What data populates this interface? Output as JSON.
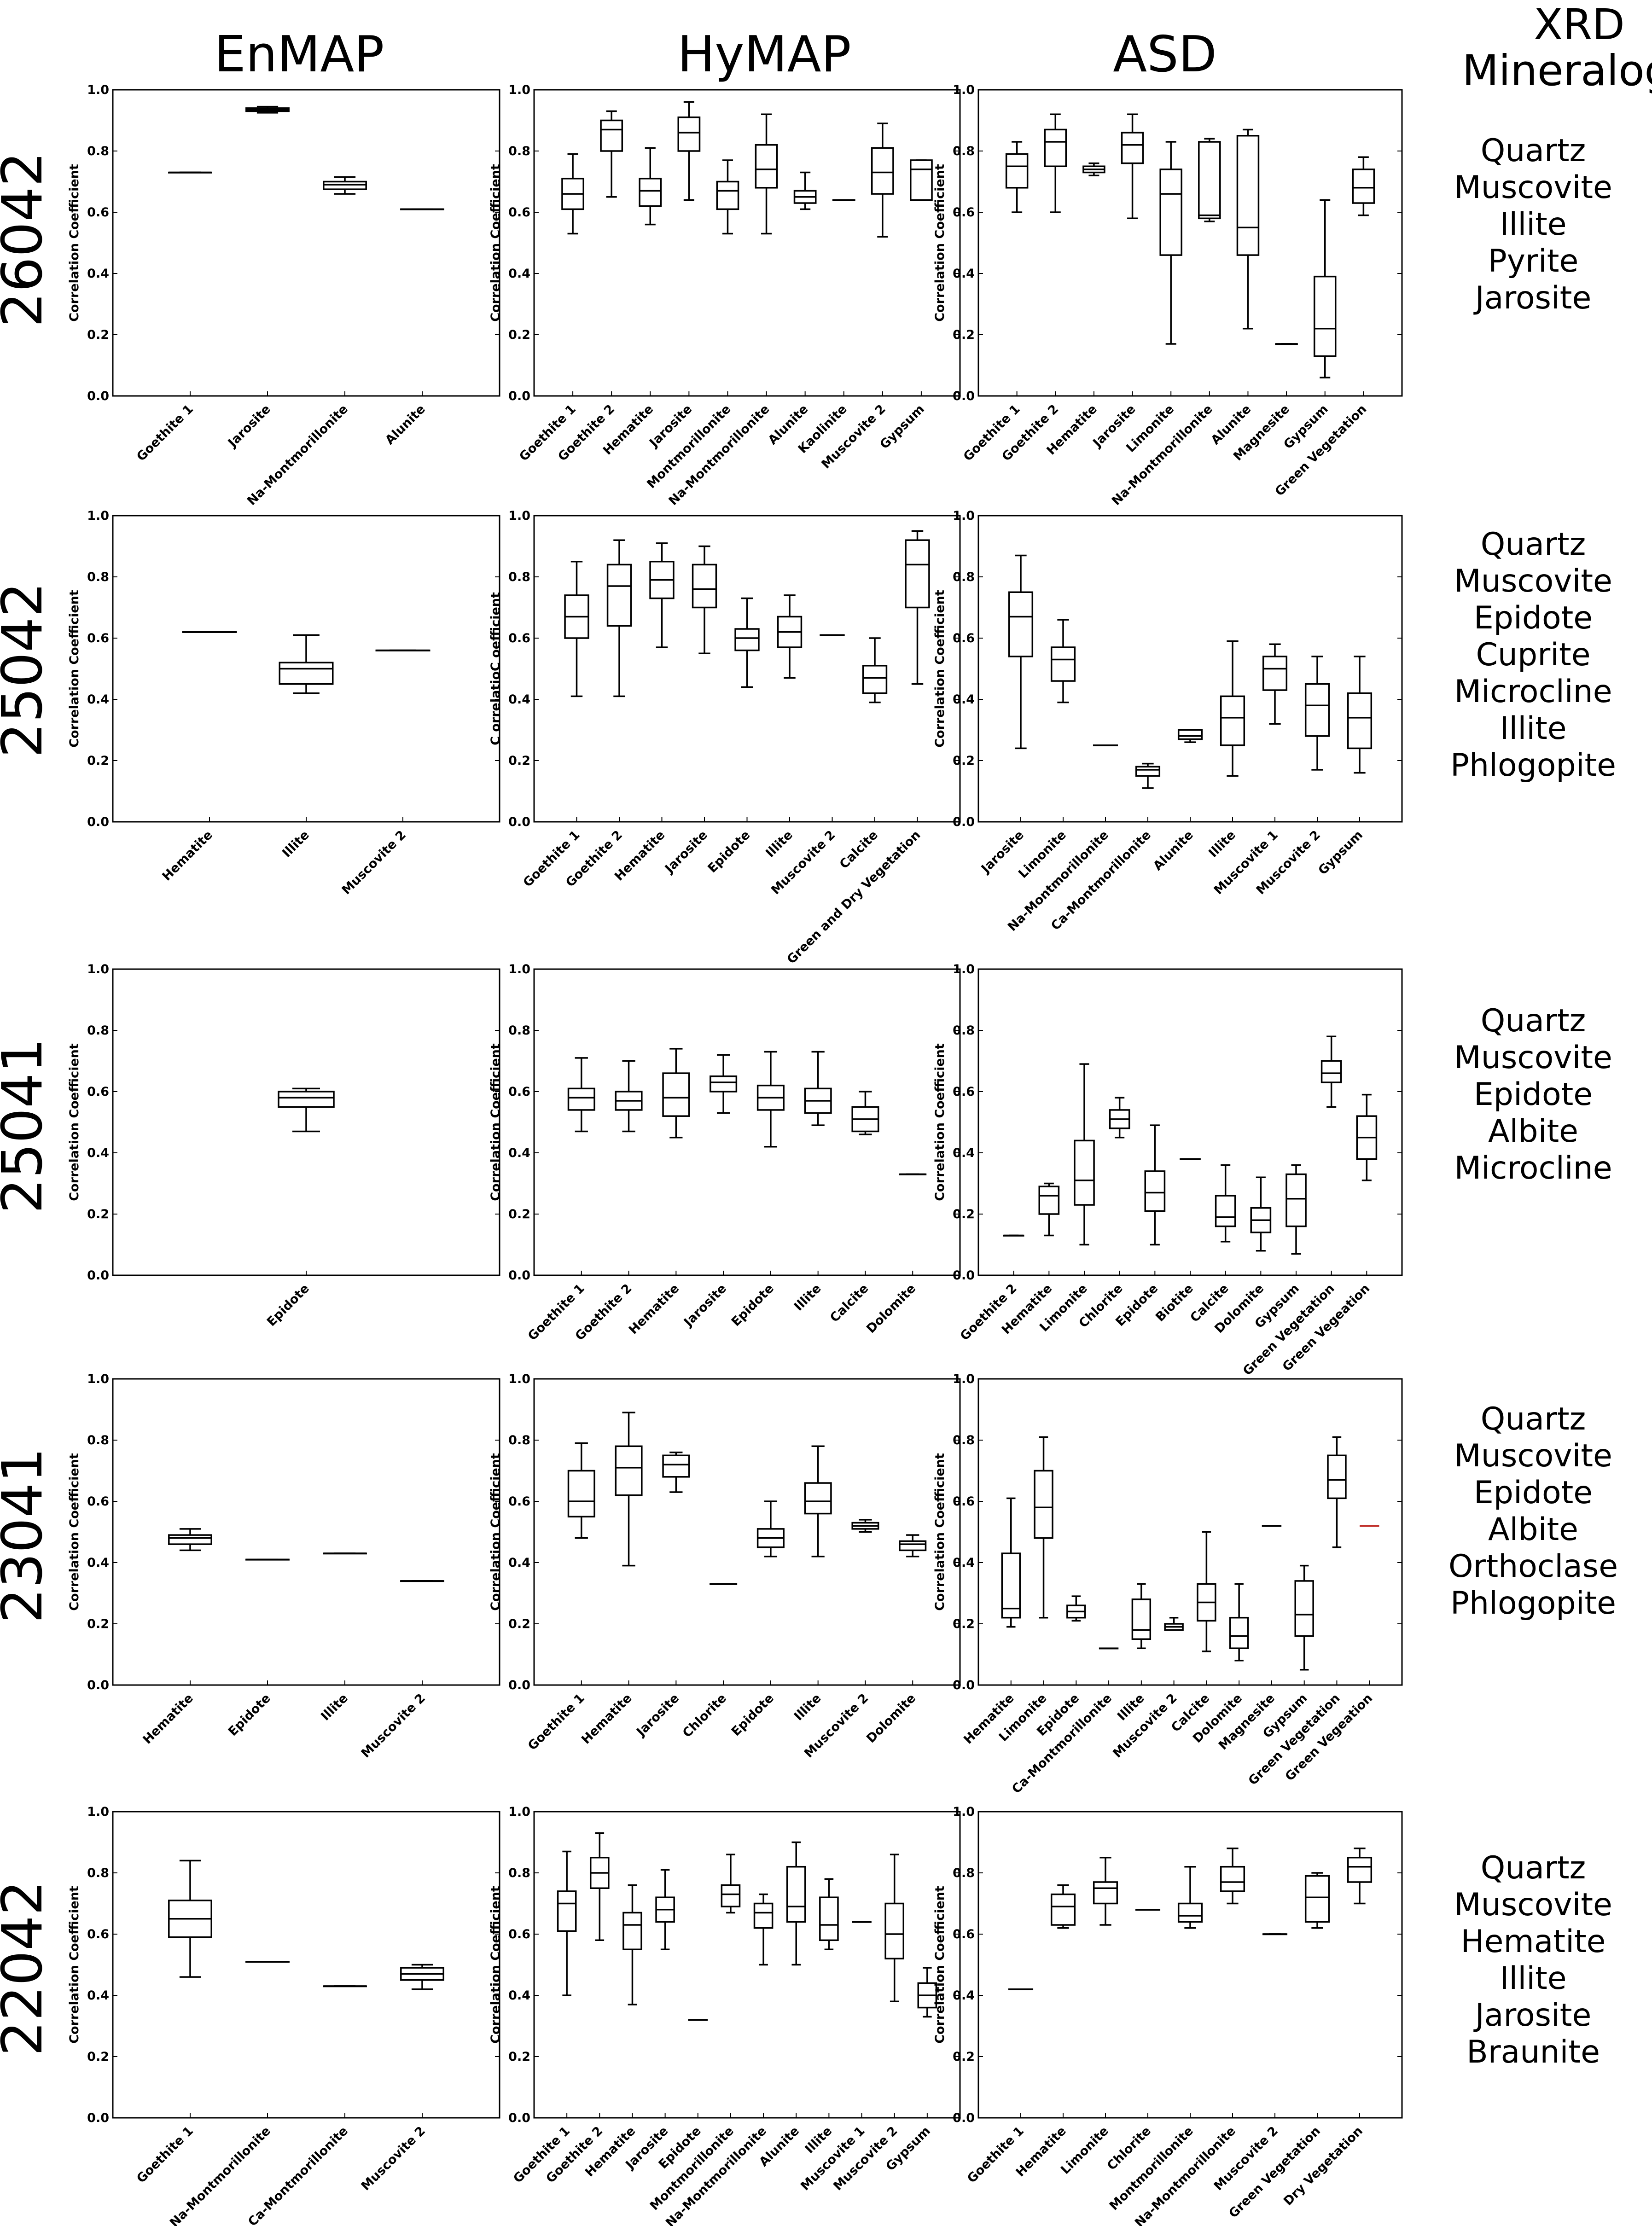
{
  "columns": [
    "EnMAP",
    "HyMAP",
    "ASD"
  ],
  "xrd_header": [
    "XRD",
    "Mineralogy"
  ],
  "ylabel": "Correlation Coefficient",
  "ylabel_variant": "C orrelatioC oefficient",
  "yticks": [
    "0.0",
    "0.2",
    "0.4",
    "0.6",
    "0.8",
    "1.0"
  ],
  "chart_data": [
    {
      "row": 0,
      "sample": "26042",
      "sensor": "EnMAP",
      "type": "box",
      "ylim": [
        0,
        1
      ],
      "ylabel": "Correlation Coefficient",
      "categories": [
        "Goethite 1",
        "Jarosite",
        "Na-Montmorillonite",
        "Alunite"
      ],
      "boxes": [
        [
          0.73,
          0.73,
          0.73,
          0.73,
          0.73
        ],
        [
          0.925,
          0.93,
          0.935,
          0.94,
          0.945
        ],
        [
          0.66,
          0.675,
          0.69,
          0.7,
          0.715
        ],
        [
          0.61,
          0.61,
          0.61,
          0.61,
          0.61
        ]
      ]
    },
    {
      "row": 0,
      "sample": "26042",
      "sensor": "HyMAP",
      "type": "box",
      "ylim": [
        0,
        1
      ],
      "ylabel": "Correlation Coefficient",
      "categories": [
        "Goethite 1",
        "Goethite 2",
        "Hematite",
        "Jarosite",
        "Montmorillonite",
        "Na-Montmorillonite",
        "Alunite",
        "Kaolinite",
        "Muscovite 2",
        "Gypsum"
      ],
      "boxes": [
        [
          0.53,
          0.61,
          0.66,
          0.71,
          0.79
        ],
        [
          0.65,
          0.8,
          0.87,
          0.9,
          0.93
        ],
        [
          0.56,
          0.62,
          0.67,
          0.71,
          0.81
        ],
        [
          0.64,
          0.8,
          0.86,
          0.91,
          0.96
        ],
        [
          0.53,
          0.61,
          0.67,
          0.7,
          0.77
        ],
        [
          0.53,
          0.68,
          0.74,
          0.82,
          0.92
        ],
        [
          0.61,
          0.63,
          0.65,
          0.67,
          0.73
        ],
        [
          0.64,
          0.64,
          0.64,
          0.64,
          0.64
        ],
        [
          0.52,
          0.66,
          0.73,
          0.81,
          0.89
        ],
        [
          0.64,
          0.64,
          0.74,
          0.77,
          0.77
        ]
      ]
    },
    {
      "row": 0,
      "sample": "26042",
      "sensor": "ASD",
      "type": "box",
      "ylim": [
        0,
        1
      ],
      "ylabel": "Correlation Coefficient",
      "categories": [
        "Goethite 1",
        "Goethite 2",
        "Hematite",
        "Jarosite",
        "Limonite",
        "Na-Montmorillonite",
        "Alunite",
        "Magnesite",
        "Gypsum",
        "Green Vegetation"
      ],
      "boxes": [
        [
          0.6,
          0.68,
          0.75,
          0.79,
          0.83
        ],
        [
          0.6,
          0.75,
          0.83,
          0.87,
          0.92
        ],
        [
          0.72,
          0.73,
          0.74,
          0.75,
          0.76
        ],
        [
          0.58,
          0.76,
          0.82,
          0.86,
          0.92
        ],
        [
          0.17,
          0.46,
          0.66,
          0.74,
          0.83
        ],
        [
          0.57,
          0.58,
          0.59,
          0.83,
          0.84
        ],
        [
          0.22,
          0.46,
          0.55,
          0.85,
          0.87
        ],
        [
          0.17,
          0.17,
          0.17,
          0.17,
          0.17
        ],
        [
          0.06,
          0.13,
          0.22,
          0.39,
          0.64
        ],
        [
          0.59,
          0.63,
          0.68,
          0.74,
          0.78
        ]
      ]
    },
    {
      "row": 1,
      "sample": "25042",
      "sensor": "EnMAP",
      "type": "box",
      "ylim": [
        0,
        1
      ],
      "ylabel": "Correlation Coefficient",
      "categories": [
        "Hematite",
        "Illite",
        "Muscovite 2"
      ],
      "boxes": [
        [
          0.62,
          0.62,
          0.62,
          0.62,
          0.62
        ],
        [
          0.42,
          0.45,
          0.5,
          0.52,
          0.61
        ],
        [
          0.56,
          0.56,
          0.56,
          0.56,
          0.56
        ]
      ]
    },
    {
      "row": 1,
      "sample": "25042",
      "sensor": "HyMAP",
      "type": "box",
      "ylim": [
        0,
        1
      ],
      "ylabel": "C orrelatioC oefficient",
      "categories": [
        "Goethite 1",
        "Goethite 2",
        "Hematite",
        "Jarosite",
        "Epidote",
        "Illite",
        "Muscovite 2",
        "Calcite",
        "Green and Dry Vegetation"
      ],
      "boxes": [
        [
          0.41,
          0.6,
          0.67,
          0.74,
          0.85
        ],
        [
          0.41,
          0.64,
          0.77,
          0.84,
          0.92
        ],
        [
          0.57,
          0.73,
          0.79,
          0.85,
          0.91
        ],
        [
          0.55,
          0.7,
          0.76,
          0.84,
          0.9
        ],
        [
          0.44,
          0.56,
          0.6,
          0.63,
          0.73
        ],
        [
          0.47,
          0.57,
          0.62,
          0.67,
          0.74
        ],
        [
          0.61,
          0.61,
          0.61,
          0.61,
          0.61
        ],
        [
          0.39,
          0.42,
          0.47,
          0.51,
          0.6
        ],
        [
          0.45,
          0.7,
          0.84,
          0.92,
          0.95
        ]
      ]
    },
    {
      "row": 1,
      "sample": "25042",
      "sensor": "ASD",
      "type": "box",
      "ylim": [
        0,
        1
      ],
      "ylabel": "Correlation Coefficient",
      "categories": [
        "Jarosite",
        "Limonite",
        "Na-Montmorillonite",
        "Ca-Montmorillonite",
        "Alunite",
        "Illite",
        "Muscovite 1",
        "Muscovite 2",
        "Gypsum"
      ],
      "boxes": [
        [
          0.24,
          0.54,
          0.67,
          0.75,
          0.87
        ],
        [
          0.39,
          0.46,
          0.53,
          0.57,
          0.66
        ],
        [
          0.25,
          0.25,
          0.25,
          0.25,
          0.25
        ],
        [
          0.11,
          0.15,
          0.17,
          0.18,
          0.19
        ],
        [
          0.26,
          0.27,
          0.28,
          0.3,
          0.3
        ],
        [
          0.15,
          0.25,
          0.34,
          0.41,
          0.59
        ],
        [
          0.32,
          0.43,
          0.5,
          0.54,
          0.58
        ],
        [
          0.17,
          0.28,
          0.38,
          0.45,
          0.54
        ],
        [
          0.16,
          0.24,
          0.34,
          0.42,
          0.54
        ]
      ]
    },
    {
      "row": 2,
      "sample": "25041",
      "sensor": "EnMAP",
      "type": "box",
      "ylim": [
        0,
        1
      ],
      "ylabel": "Correlation Coefficient",
      "categories": [
        "Epidote"
      ],
      "boxes": [
        [
          0.47,
          0.55,
          0.58,
          0.6,
          0.61
        ]
      ]
    },
    {
      "row": 2,
      "sample": "25041",
      "sensor": "HyMAP",
      "type": "box",
      "ylim": [
        0,
        1
      ],
      "ylabel": "Correlation Coefficient",
      "categories": [
        "Goethite 1",
        "Goethite 2",
        "Hematite",
        "Jarosite",
        "Epidote",
        "Illite",
        "Calcite",
        "Dolomite"
      ],
      "boxes": [
        [
          0.47,
          0.54,
          0.58,
          0.61,
          0.71
        ],
        [
          0.47,
          0.54,
          0.57,
          0.6,
          0.7
        ],
        [
          0.45,
          0.52,
          0.58,
          0.66,
          0.74
        ],
        [
          0.53,
          0.6,
          0.63,
          0.65,
          0.72
        ],
        [
          0.42,
          0.54,
          0.58,
          0.62,
          0.73
        ],
        [
          0.49,
          0.53,
          0.57,
          0.61,
          0.73
        ],
        [
          0.46,
          0.47,
          0.51,
          0.55,
          0.6
        ],
        [
          0.33,
          0.33,
          0.33,
          0.33,
          0.33
        ]
      ]
    },
    {
      "row": 2,
      "sample": "25041",
      "sensor": "ASD",
      "type": "box",
      "ylim": [
        0,
        1
      ],
      "ylabel": "Correlation Coefficient",
      "categories": [
        "Goethite 2",
        "Hematite",
        "Limonite",
        "Chlorite",
        "Epidote",
        "Biotite",
        "Calcite",
        "Dolomite",
        "Gypsum",
        "Green Vegetation",
        "Green Vegeation"
      ],
      "boxes": [
        [
          0.13,
          0.13,
          0.13,
          0.13,
          0.13
        ],
        [
          0.13,
          0.2,
          0.26,
          0.29,
          0.3
        ],
        [
          0.1,
          0.23,
          0.31,
          0.44,
          0.69
        ],
        [
          0.45,
          0.48,
          0.51,
          0.54,
          0.58
        ],
        [
          0.1,
          0.21,
          0.27,
          0.34,
          0.49
        ],
        [
          0.38,
          0.38,
          0.38,
          0.38,
          0.38
        ],
        [
          0.11,
          0.16,
          0.19,
          0.26,
          0.36
        ],
        [
          0.08,
          0.14,
          0.18,
          0.22,
          0.32
        ],
        [
          0.07,
          0.16,
          0.25,
          0.33,
          0.36
        ],
        [
          0.55,
          0.63,
          0.66,
          0.7,
          0.78
        ],
        [
          0.31,
          0.38,
          0.45,
          0.52,
          0.59
        ]
      ]
    },
    {
      "row": 3,
      "sample": "23041",
      "sensor": "EnMAP",
      "type": "box",
      "ylim": [
        0,
        1
      ],
      "ylabel": "Correlation Coefficient",
      "categories": [
        "Hematite",
        "Epidote",
        "Illite",
        "Muscovite 2"
      ],
      "boxes": [
        [
          0.44,
          0.46,
          0.48,
          0.49,
          0.51
        ],
        [
          0.41,
          0.41,
          0.41,
          0.41,
          0.41
        ],
        [
          0.43,
          0.43,
          0.43,
          0.43,
          0.43
        ],
        [
          0.34,
          0.34,
          0.34,
          0.34,
          0.34
        ]
      ]
    },
    {
      "row": 3,
      "sample": "23041",
      "sensor": "HyMAP",
      "type": "box",
      "ylim": [
        0,
        1
      ],
      "ylabel": "Correlation Coefficient",
      "categories": [
        "Goethite 1",
        "Hematite",
        "Jarosite",
        "Chlorite",
        "Epidote",
        "Illite",
        "Muscovite 2",
        "Dolomite"
      ],
      "boxes": [
        [
          0.48,
          0.55,
          0.6,
          0.7,
          0.79
        ],
        [
          0.39,
          0.62,
          0.71,
          0.78,
          0.89
        ],
        [
          0.63,
          0.68,
          0.72,
          0.75,
          0.76
        ],
        [
          0.33,
          0.33,
          0.33,
          0.33,
          0.33
        ],
        [
          0.42,
          0.45,
          0.48,
          0.51,
          0.6
        ],
        [
          0.42,
          0.56,
          0.6,
          0.66,
          0.78
        ],
        [
          0.5,
          0.51,
          0.52,
          0.53,
          0.54
        ],
        [
          0.42,
          0.44,
          0.46,
          0.47,
          0.49
        ]
      ]
    },
    {
      "row": 3,
      "sample": "23041",
      "sensor": "ASD",
      "type": "box",
      "ylim": [
        0,
        1
      ],
      "ylabel": "Correlation Coefficient",
      "categories": [
        "Hematite",
        "Limonite",
        "Epidote",
        "Ca-Montmorillonite",
        "Illite",
        "Muscovite 2",
        "Calcite",
        "Dolomite",
        "Magnesite",
        "Gypsum",
        "Green Vegetation",
        "Green Vegeation"
      ],
      "boxes": [
        [
          0.19,
          0.22,
          0.25,
          0.43,
          0.61
        ],
        [
          0.22,
          0.48,
          0.58,
          0.7,
          0.81
        ],
        [
          0.21,
          0.22,
          0.24,
          0.26,
          0.29
        ],
        [
          0.12,
          0.12,
          0.12,
          0.12,
          0.12
        ],
        [
          0.12,
          0.15,
          0.18,
          0.28,
          0.33
        ],
        [
          0.18,
          0.18,
          0.19,
          0.2,
          0.22
        ],
        [
          0.11,
          0.21,
          0.27,
          0.33,
          0.5
        ],
        [
          0.08,
          0.12,
          0.16,
          0.22,
          0.33
        ],
        [
          0.52,
          0.52,
          0.52,
          0.52,
          0.52
        ],
        [
          0.05,
          0.16,
          0.23,
          0.34,
          0.39
        ],
        [
          0.45,
          0.61,
          0.67,
          0.75,
          0.81
        ],
        [
          0.52,
          0.52,
          0.52,
          0.52,
          0.52
        ]
      ],
      "box_colors": [
        "#000",
        "#000",
        "#000",
        "#000",
        "#000",
        "#000",
        "#000",
        "#000",
        "#000",
        "#000",
        "#000",
        "#c0302b"
      ]
    },
    {
      "row": 4,
      "sample": "22042",
      "sensor": "EnMAP",
      "type": "box",
      "ylim": [
        0,
        1
      ],
      "ylabel": "Correlation Coefficient",
      "categories": [
        "Goethite 1",
        "Na-Montmorillonite",
        "Ca-Montmorillonite",
        "Muscovite 2"
      ],
      "boxes": [
        [
          0.46,
          0.59,
          0.65,
          0.71,
          0.84
        ],
        [
          0.51,
          0.51,
          0.51,
          0.51,
          0.51
        ],
        [
          0.43,
          0.43,
          0.43,
          0.43,
          0.43
        ],
        [
          0.42,
          0.45,
          0.47,
          0.49,
          0.5
        ]
      ]
    },
    {
      "row": 4,
      "sample": "22042",
      "sensor": "HyMAP",
      "type": "box",
      "ylim": [
        0,
        1
      ],
      "ylabel": "Correlation Coefficient",
      "categories": [
        "Goethite 1",
        "Goethite 2",
        "Hematite",
        "Jarosite",
        "Epidote",
        "Montmorillonite",
        "Na-Montmorillonite",
        "Alunite",
        "Illite",
        "Muscovite 1",
        "Muscovite 2",
        "Gypsum"
      ],
      "boxes": [
        [
          0.4,
          0.61,
          0.7,
          0.74,
          0.87
        ],
        [
          0.58,
          0.75,
          0.8,
          0.85,
          0.93
        ],
        [
          0.37,
          0.55,
          0.63,
          0.67,
          0.76
        ],
        [
          0.55,
          0.64,
          0.68,
          0.72,
          0.81
        ],
        [
          0.32,
          0.32,
          0.32,
          0.32,
          0.32
        ],
        [
          0.67,
          0.69,
          0.73,
          0.76,
          0.86
        ],
        [
          0.5,
          0.62,
          0.67,
          0.7,
          0.73
        ],
        [
          0.5,
          0.64,
          0.69,
          0.82,
          0.9
        ],
        [
          0.55,
          0.58,
          0.63,
          0.72,
          0.78
        ],
        [
          0.64,
          0.64,
          0.64,
          0.64,
          0.64
        ],
        [
          0.38,
          0.52,
          0.6,
          0.7,
          0.86
        ],
        [
          0.33,
          0.36,
          0.4,
          0.44,
          0.49
        ]
      ]
    },
    {
      "row": 4,
      "sample": "22042",
      "sensor": "ASD",
      "type": "box",
      "ylim": [
        0,
        1
      ],
      "ylabel": "Correlation Coefficient",
      "categories": [
        "Goethite 1",
        "Hematite",
        "Limonite",
        "Chlorite",
        "Montmorillonite",
        "Na-Montmorillonite",
        "Muscovite 2",
        "Green Vegetation",
        "Dry Vegetation"
      ],
      "boxes": [
        [
          0.42,
          0.42,
          0.42,
          0.42,
          0.42
        ],
        [
          0.62,
          0.63,
          0.69,
          0.73,
          0.76
        ],
        [
          0.63,
          0.7,
          0.75,
          0.77,
          0.85
        ],
        [
          0.68,
          0.68,
          0.68,
          0.68,
          0.68
        ],
        [
          0.62,
          0.64,
          0.66,
          0.7,
          0.82
        ],
        [
          0.7,
          0.74,
          0.77,
          0.82,
          0.88
        ],
        [
          0.6,
          0.6,
          0.6,
          0.6,
          0.6
        ],
        [
          0.62,
          0.64,
          0.72,
          0.79,
          0.8
        ],
        [
          0.7,
          0.77,
          0.82,
          0.85,
          0.88
        ]
      ]
    }
  ],
  "rows": [
    {
      "sample": "26042",
      "xrd": [
        "Quartz",
        "Muscovite",
        "Illite",
        "Pyrite",
        "Jarosite"
      ]
    },
    {
      "sample": "25042",
      "xrd": [
        "Quartz",
        "Muscovite",
        "Epidote",
        "Cuprite",
        "Microcline",
        "Illite",
        "Phlogopite"
      ]
    },
    {
      "sample": "25041",
      "xrd": [
        "Quartz",
        "Muscovite",
        "Epidote",
        "Albite",
        "Microcline"
      ]
    },
    {
      "sample": "23041",
      "xrd": [
        "Quartz",
        "Muscovite",
        "Epidote",
        "Albite",
        "Orthoclase",
        "Phlogopite"
      ]
    },
    {
      "sample": "22042",
      "xrd": [
        "Quartz",
        "Muscovite",
        "Hematite",
        "Illite",
        "Jarosite",
        "Braunite"
      ]
    }
  ]
}
